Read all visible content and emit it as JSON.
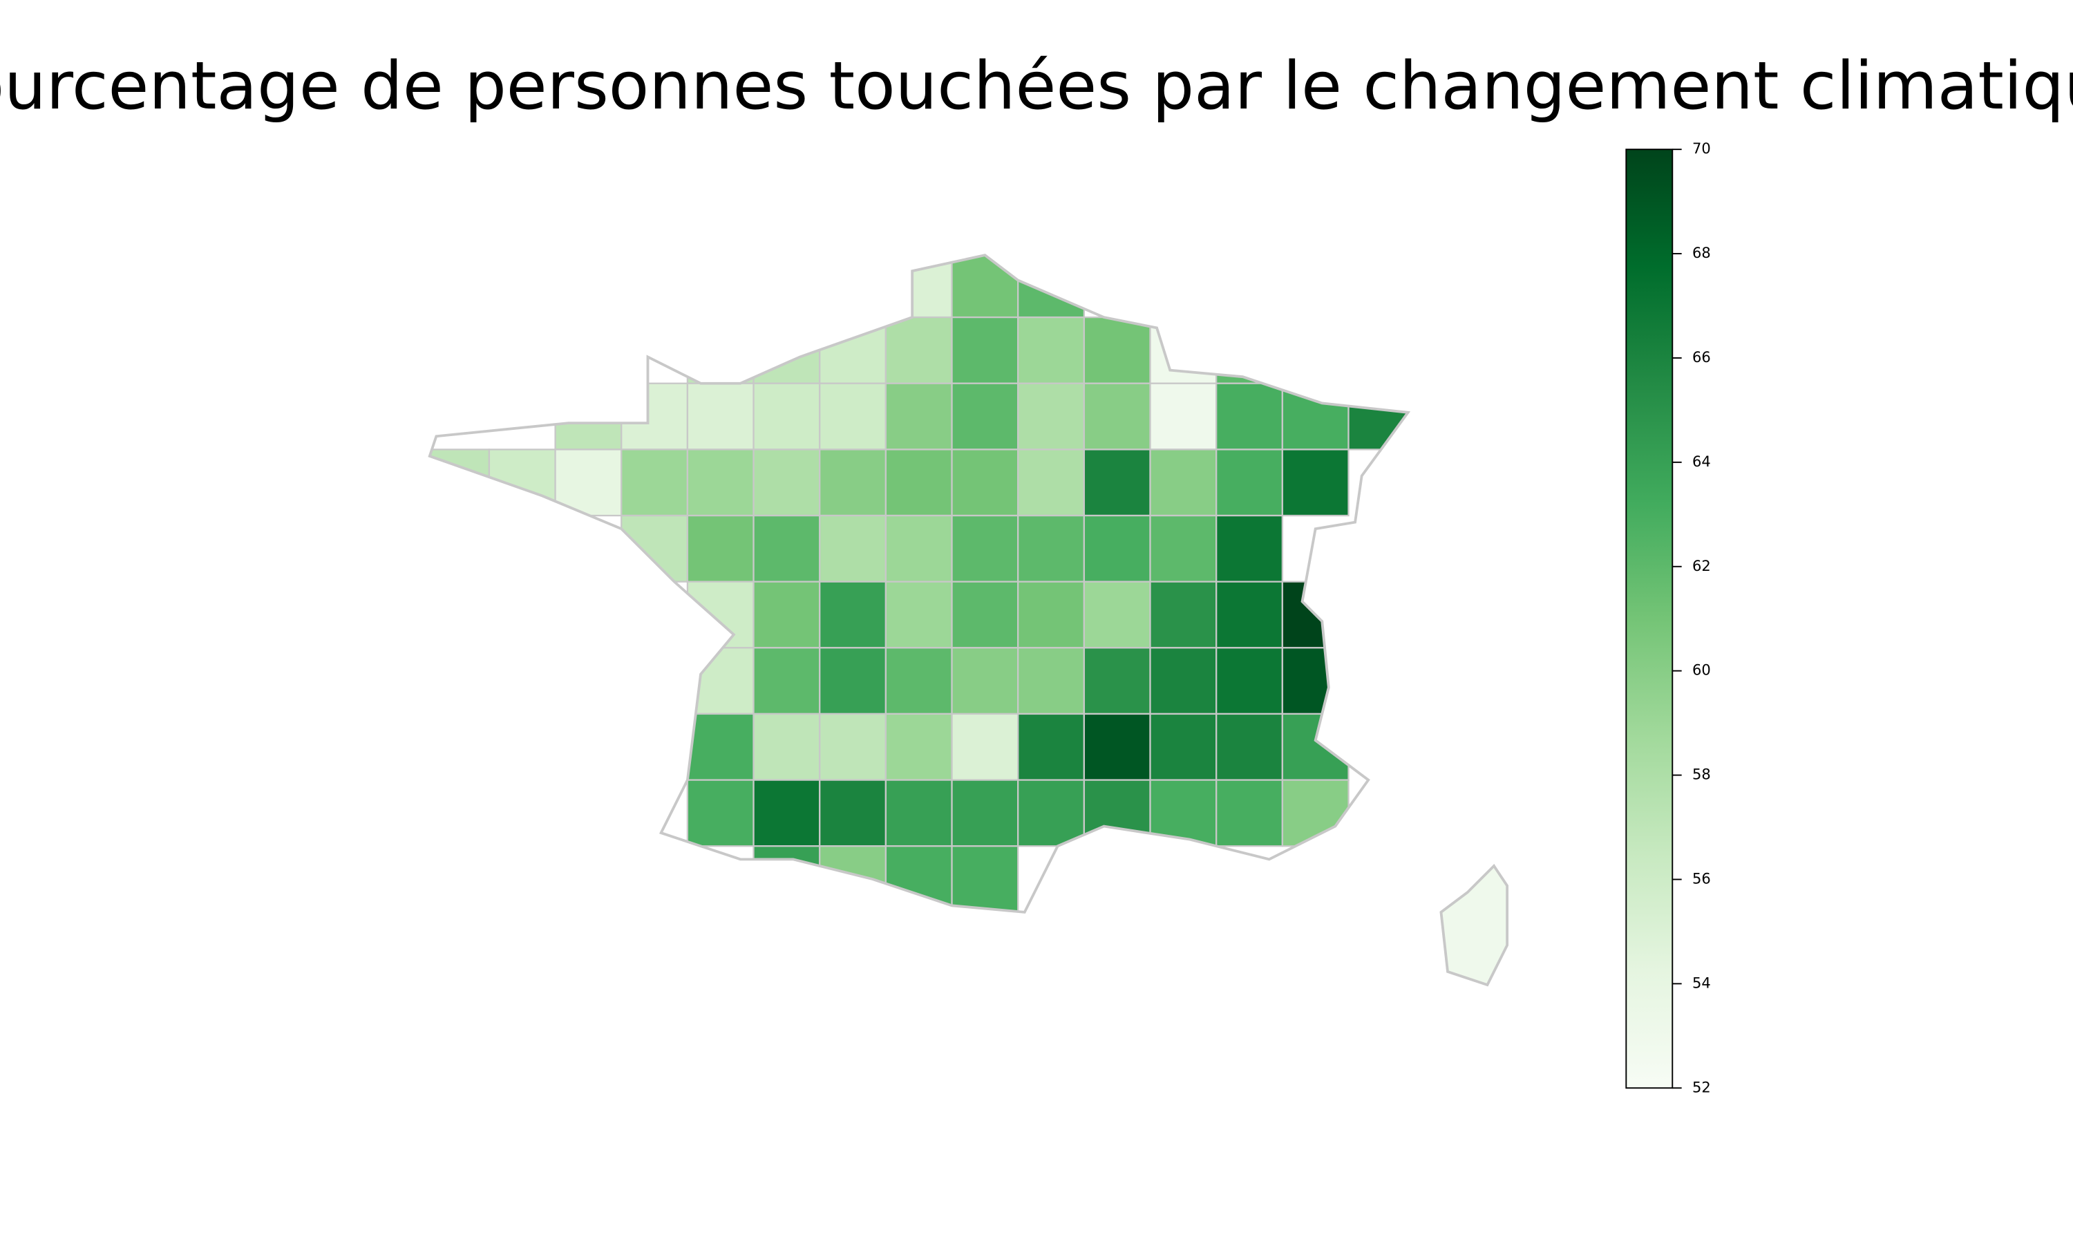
{
  "chart_data": {
    "type": "choropleth",
    "title": "Pourcentage de personnes touchées par le changement climatique",
    "values": [
      55,
      61,
      62,
      57,
      57,
      56,
      58,
      62,
      59,
      61,
      53,
      62,
      57,
      55,
      55,
      56,
      56,
      60,
      62,
      58,
      60,
      53,
      63,
      63,
      66,
      57,
      56,
      54,
      59,
      59,
      58,
      60,
      61,
      61,
      58,
      66,
      60,
      63,
      67,
      57,
      61,
      62,
      58,
      59,
      62,
      62,
      63,
      62,
      67,
      56,
      61,
      64,
      59,
      62,
      61,
      59,
      65,
      67,
      70,
      56,
      62,
      64,
      62,
      60,
      60,
      65,
      66,
      67,
      69,
      63,
      57,
      57,
      59,
      55,
      66,
      69,
      66,
      66,
      64,
      63,
      67,
      66,
      64,
      64,
      64,
      65,
      63,
      63,
      60,
      64,
      60,
      63,
      63,
      53
    ],
    "colormap": [
      "#f7fcf5",
      "#e5f5e0",
      "#c7e9c0",
      "#a1d99b",
      "#74c476",
      "#41ab5d",
      "#238b45",
      "#006d2c",
      "#00441b"
    ],
    "clim": [
      52,
      70
    ],
    "cticks": [
      52,
      54,
      56,
      58,
      60,
      62,
      64,
      66,
      68,
      70
    ]
  }
}
